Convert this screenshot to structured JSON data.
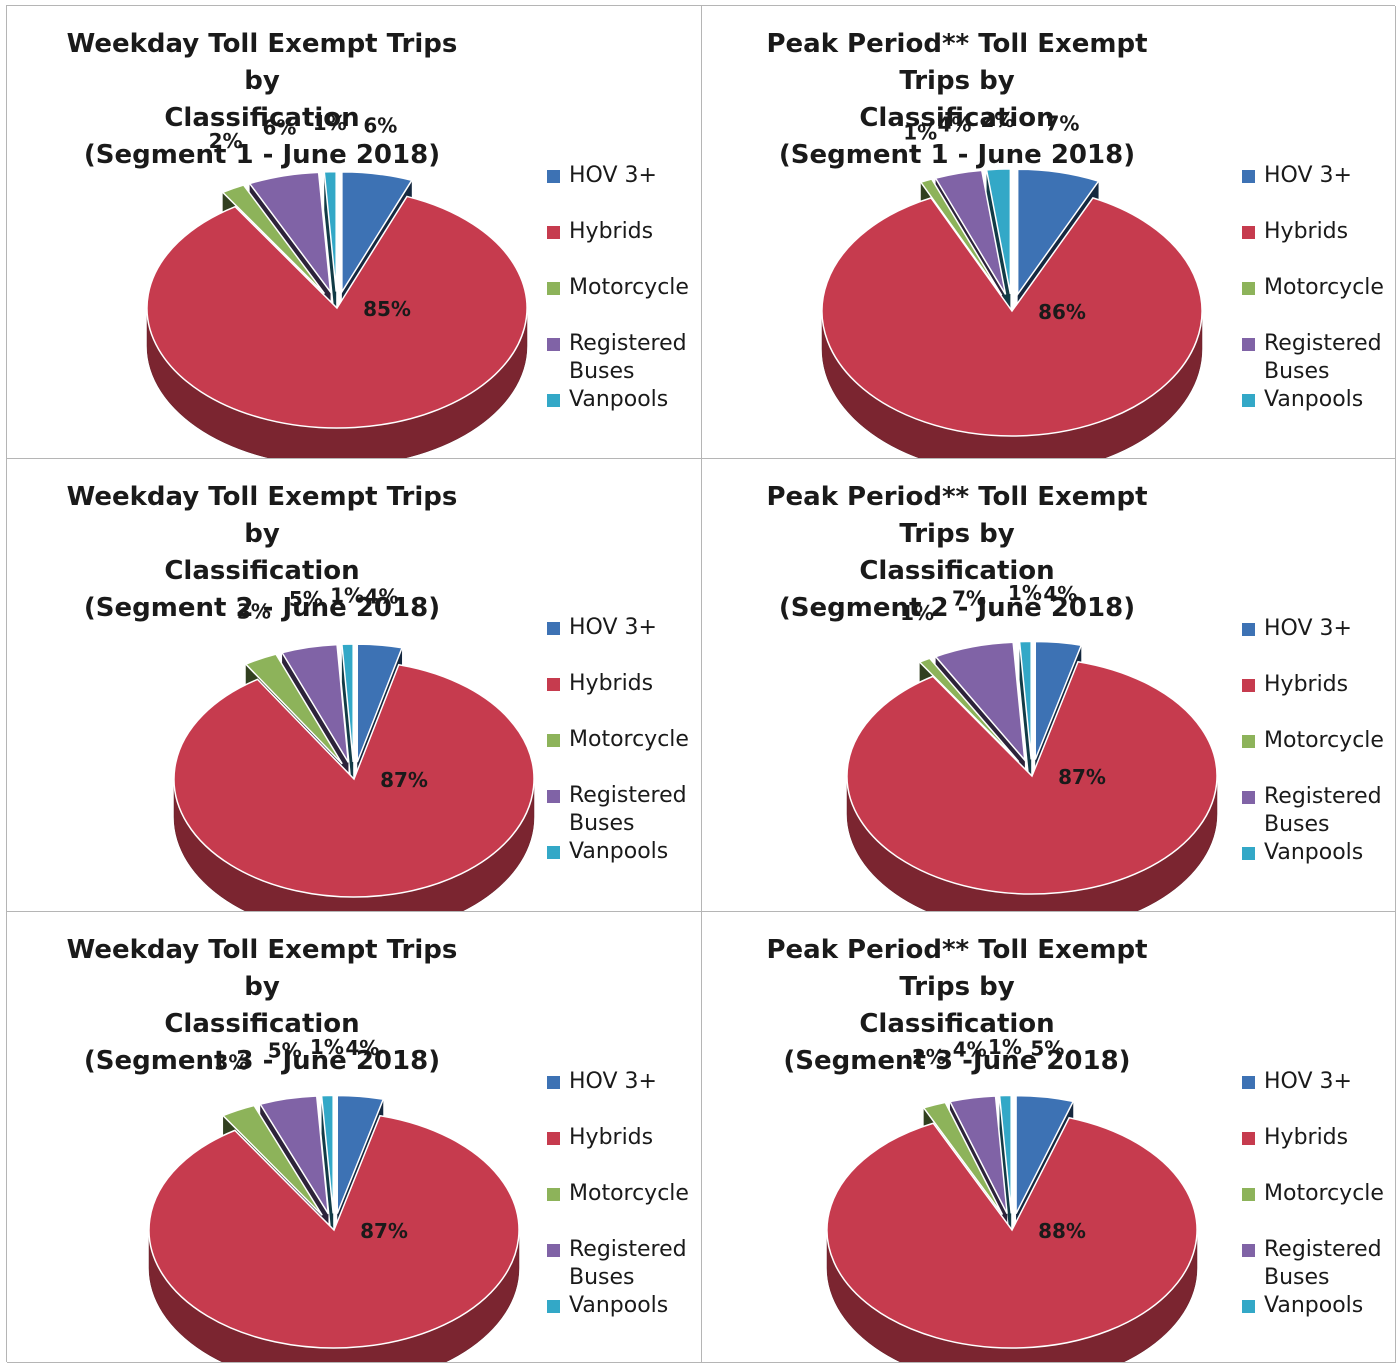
{
  "legend_items": [
    {
      "name": "HOV 3+",
      "color": "#3d72b4"
    },
    {
      "name": "Hybrids",
      "color": "#c63b4e"
    },
    {
      "name": "Motorcycle",
      "color": "#8db35a"
    },
    {
      "name": "Registered Buses",
      "line1": "Registered",
      "line2": "Buses",
      "color": "#8063a6"
    },
    {
      "name": "Vanpools",
      "color": "#33a8c7"
    }
  ],
  "chart_data": [
    {
      "type": "pie",
      "title_lines": [
        "Weekday Toll Exempt Trips by",
        "Classification",
        "(Segment 1 - June 2018)"
      ],
      "categories": [
        "HOV 3+",
        "Hybrids",
        "Motorcycle",
        "Registered Buses",
        "Vanpools"
      ],
      "values": [
        6,
        85,
        2,
        6,
        1
      ],
      "labels": [
        "6%",
        "85%",
        "2%",
        "6%",
        "1%"
      ]
    },
    {
      "type": "pie",
      "title_lines": [
        "Peak Period** Toll Exempt Trips by",
        "Classification",
        "(Segment 1 - June 2018)"
      ],
      "categories": [
        "HOV 3+",
        "Hybrids",
        "Motorcycle",
        "Registered Buses",
        "Vanpools"
      ],
      "values": [
        7,
        86,
        1,
        4,
        2
      ],
      "labels": [
        "7%",
        "86%",
        "1%",
        "4%",
        "2%"
      ]
    },
    {
      "type": "pie",
      "title_lines": [
        "Weekday Toll Exempt Trips by",
        "Classification",
        "(Segment 2 - June 2018)"
      ],
      "categories": [
        "HOV 3+",
        "Hybrids",
        "Motorcycle",
        "Registered Buses",
        "Vanpools"
      ],
      "values": [
        4,
        87,
        3,
        5,
        1
      ],
      "labels": [
        "4%",
        "87%",
        "3%",
        "5%",
        "1%"
      ]
    },
    {
      "type": "pie",
      "title_lines": [
        "Peak Period** Toll Exempt Trips by",
        "Classification",
        "(Segment 2 - June 2018)"
      ],
      "categories": [
        "HOV 3+",
        "Hybrids",
        "Motorcycle",
        "Registered Buses",
        "Vanpools"
      ],
      "values": [
        4,
        87,
        1,
        7,
        1
      ],
      "labels": [
        "4%",
        "87%",
        "1%",
        "7%",
        "1%"
      ]
    },
    {
      "type": "pie",
      "title_lines": [
        "Weekday Toll Exempt Trips by",
        "Classification",
        "(Segment 3 - June 2018)"
      ],
      "categories": [
        "HOV 3+",
        "Hybrids",
        "Motorcycle",
        "Registered Buses",
        "Vanpools"
      ],
      "values": [
        4,
        87,
        3,
        5,
        1
      ],
      "labels": [
        "4%",
        "87%",
        "3%",
        "5%",
        "1%"
      ]
    },
    {
      "type": "pie",
      "title_lines": [
        "Peak Period** Toll Exempt Trips by",
        "Classification",
        "(Segment 3 -June 2018)"
      ],
      "categories": [
        "HOV 3+",
        "Hybrids",
        "Motorcycle",
        "Registered Buses",
        "Vanpools"
      ],
      "values": [
        5,
        88,
        2,
        4,
        1
      ],
      "labels": [
        "5%",
        "88%",
        "2%",
        "4%",
        "1%"
      ]
    }
  ]
}
